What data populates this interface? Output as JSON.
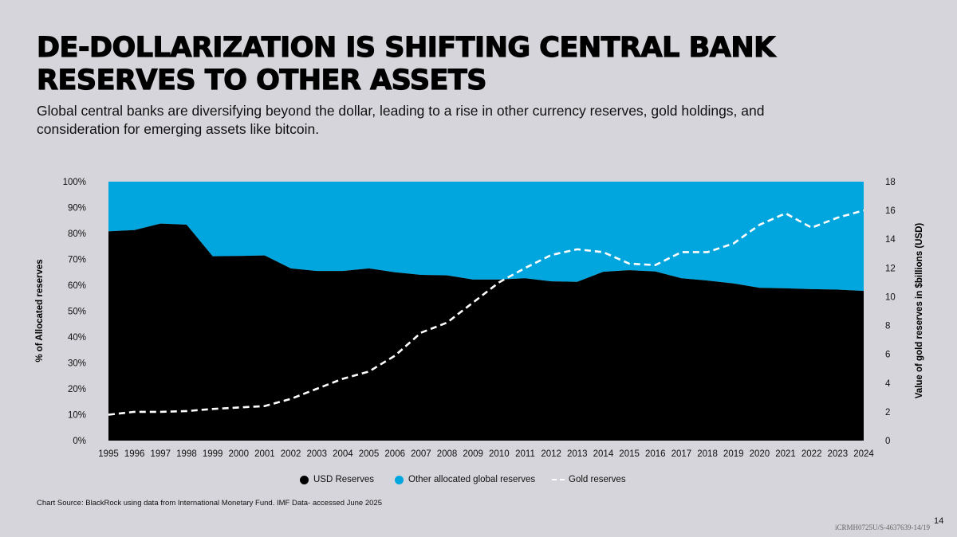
{
  "slide": {
    "title": "DE-DOLLARIZATION IS SHIFTING CENTRAL BANK RESERVES TO OTHER ASSETS",
    "subtitle": "Global central banks are diversifying beyond the dollar, leading to a rise in other currency reserves, gold holdings, and consideration for emerging assets like bitcoin.",
    "source": "Chart Source:  BlackRock using data from International Monetary Fund. IMF Data- accessed June 2025",
    "doc_id": "iCRMH0725U/S-4637639-14/19",
    "page_number": "14"
  },
  "chart_data": {
    "type": "area",
    "x": [
      "1995",
      "1996",
      "1997",
      "1998",
      "1999",
      "2000",
      "2001",
      "2002",
      "2003",
      "2004",
      "2005",
      "2006",
      "2007",
      "2008",
      "2009",
      "2010",
      "2011",
      "2012",
      "2013",
      "2014",
      "2015",
      "2016",
      "2017",
      "2018",
      "2019",
      "2020",
      "2021",
      "2022",
      "2023",
      "2024"
    ],
    "series": [
      {
        "name": "USD Reserves",
        "axis": "left",
        "kind": "stacked-area",
        "color": "#000000",
        "values": [
          80.8,
          81.3,
          83.8,
          83.4,
          71.2,
          71.3,
          71.5,
          66.5,
          65.5,
          65.5,
          66.5,
          65.0,
          64.0,
          63.8,
          62.2,
          62.2,
          62.7,
          61.5,
          61.3,
          65.2,
          65.8,
          65.3,
          62.7,
          61.8,
          60.7,
          59.0,
          58.8,
          58.5,
          58.3,
          57.8
        ]
      },
      {
        "name": "Other allocated global reserves",
        "axis": "left",
        "kind": "stacked-area",
        "color": "#00a6dd",
        "values": [
          19.2,
          18.7,
          16.2,
          16.6,
          28.8,
          28.7,
          28.5,
          33.5,
          34.5,
          34.5,
          33.5,
          35.0,
          36.0,
          36.2,
          37.8,
          37.8,
          37.3,
          38.5,
          38.7,
          34.8,
          34.2,
          34.7,
          37.3,
          38.2,
          39.3,
          41.0,
          41.2,
          41.5,
          41.7,
          42.2
        ]
      },
      {
        "name": "Gold reserves",
        "axis": "right",
        "kind": "dashed-line",
        "color": "#ffffff",
        "values": [
          1.8,
          2.0,
          2.0,
          2.05,
          2.2,
          2.3,
          2.4,
          2.9,
          3.6,
          4.3,
          4.8,
          5.9,
          7.5,
          8.2,
          9.6,
          11.0,
          12.0,
          12.9,
          13.3,
          13.1,
          12.3,
          12.2,
          13.1,
          13.1,
          13.7,
          15.0,
          15.8,
          14.8,
          15.5,
          16.0
        ]
      }
    ],
    "y_left": {
      "label": "% of Allocated reserves",
      "ticks": [
        "0%",
        "10%",
        "20%",
        "30%",
        "40%",
        "50%",
        "60%",
        "70%",
        "80%",
        "90%",
        "100%"
      ],
      "range": [
        0,
        100
      ]
    },
    "y_right": {
      "label": "Value of gold reserves in $billions (USD)",
      "ticks": [
        "0",
        "2",
        "4",
        "6",
        "8",
        "10",
        "12",
        "14",
        "16",
        "18"
      ],
      "range": [
        0,
        18
      ]
    },
    "legend": {
      "position": "bottom",
      "items": [
        "USD Reserves",
        "Other allocated global reserves",
        "Gold reserves"
      ]
    },
    "grid": false
  }
}
